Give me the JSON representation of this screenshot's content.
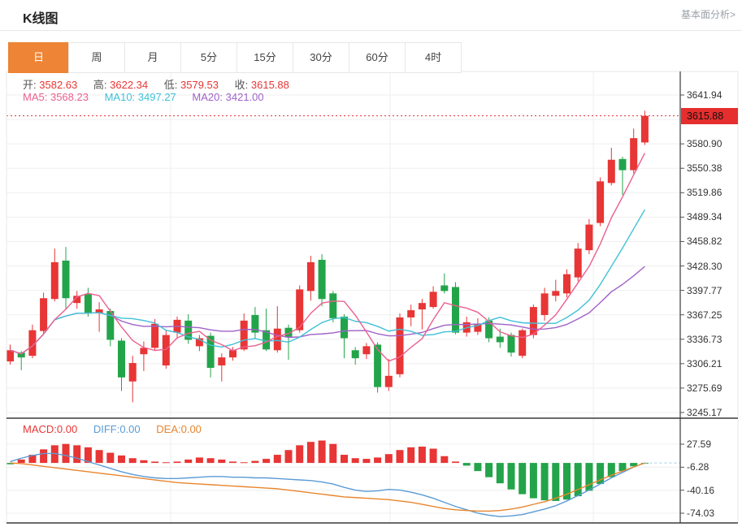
{
  "header": {
    "title": "K线图",
    "link": "基本面分析>"
  },
  "tabs": {
    "items": [
      "日",
      "周",
      "月",
      "5分",
      "15分",
      "30分",
      "60分",
      "4时"
    ],
    "active_index": 0
  },
  "legend": {
    "open_label": "开:",
    "open": "3582.63",
    "high_label": "高:",
    "high": "3622.34",
    "low_label": "低:",
    "low": "3579.53",
    "close_label": "收:",
    "close": "3615.88",
    "ma5_label": "MA5:",
    "ma5": "3568.23",
    "ma10_label": "MA10:",
    "ma10": "3497.27",
    "ma20_label": "MA20:",
    "ma20": "3421.00"
  },
  "macd_legend": {
    "macd_label": "MACD:",
    "macd": "0.00",
    "diff_label": "DIFF:",
    "diff": "0.00",
    "dea_label": "DEA:",
    "dea": "0.00"
  },
  "price_axis": {
    "ticks": [
      "3641.94",
      "3580.90",
      "3550.38",
      "3519.86",
      "3489.34",
      "3458.82",
      "3428.30",
      "3397.77",
      "3367.25",
      "3336.73",
      "3306.21",
      "3275.69",
      "3245.17"
    ],
    "current_tag": "3615.88"
  },
  "macd_axis": {
    "ticks": [
      "27.59",
      "-6.28",
      "-40.16",
      "-74.03"
    ]
  },
  "colors": {
    "up": "#e83535",
    "down": "#23a44a",
    "tag_bg": "#e62e2e",
    "ma5": "#ec5f8f",
    "ma10": "#3fc0d8",
    "ma20": "#a062c8",
    "diff": "#5b9bd5",
    "dea": "#e8852e",
    "grid": "#efefef",
    "frame_light": "#e7e7e7",
    "frame_dark": "#3a3a3a",
    "active_tab": "#ee8435",
    "dotted_line": "#e62e2e",
    "zero_dash": "#9ccbe8"
  },
  "chart_data": {
    "type": "candlestick+macd",
    "title": "K线图 日K",
    "price_axis_range": [
      3245.17,
      3641.94
    ],
    "price_gridline_step": 30.52,
    "current_price": 3615.88,
    "last_ohlc": {
      "open": 3582.63,
      "high": 3622.34,
      "low": 3579.53,
      "close": 3615.88
    },
    "ma_values": {
      "MA5": 3568.23,
      "MA10": 3497.27,
      "MA20": 3421.0
    },
    "ma_periods": [
      5,
      10,
      20
    ],
    "macd_axis_range": [
      -74.03,
      27.59
    ],
    "macd_values": {
      "MACD": 0.0,
      "DIFF": 0.0,
      "DEA": 0.0
    },
    "candles_ohlc": [
      [
        3309,
        3330,
        3305,
        3323
      ],
      [
        3320,
        3322,
        3298,
        3314
      ],
      [
        3316,
        3355,
        3313,
        3348
      ],
      [
        3347,
        3395,
        3344,
        3388
      ],
      [
        3387,
        3450,
        3384,
        3433
      ],
      [
        3435,
        3452,
        3374,
        3388
      ],
      [
        3382,
        3397,
        3375,
        3391
      ],
      [
        3393,
        3401,
        3365,
        3370
      ],
      [
        3369,
        3383,
        3346,
        3374
      ],
      [
        3372,
        3375,
        3328,
        3336
      ],
      [
        3335,
        3338,
        3272,
        3289
      ],
      [
        3284,
        3316,
        3258,
        3307
      ],
      [
        3318,
        3334,
        3297,
        3326
      ],
      [
        3326,
        3362,
        3322,
        3356
      ],
      [
        3304,
        3348,
        3300,
        3342
      ],
      [
        3345,
        3365,
        3339,
        3361
      ],
      [
        3360,
        3368,
        3331,
        3336
      ],
      [
        3328,
        3342,
        3322,
        3338
      ],
      [
        3341,
        3345,
        3289,
        3301
      ],
      [
        3304,
        3319,
        3284,
        3314
      ],
      [
        3314,
        3327,
        3310,
        3323
      ],
      [
        3324,
        3369,
        3322,
        3360
      ],
      [
        3367,
        3377,
        3338,
        3345
      ],
      [
        3348,
        3375,
        3322,
        3324
      ],
      [
        3323,
        3378,
        3320,
        3350
      ],
      [
        3351,
        3355,
        3311,
        3340
      ],
      [
        3348,
        3404,
        3345,
        3399
      ],
      [
        3397,
        3441,
        3385,
        3433
      ],
      [
        3436,
        3443,
        3378,
        3387
      ],
      [
        3394,
        3397,
        3358,
        3363
      ],
      [
        3365,
        3368,
        3313,
        3338
      ],
      [
        3323,
        3327,
        3305,
        3313
      ],
      [
        3318,
        3332,
        3312,
        3328
      ],
      [
        3330,
        3333,
        3270,
        3277
      ],
      [
        3277,
        3312,
        3272,
        3291
      ],
      [
        3293,
        3369,
        3289,
        3364
      ],
      [
        3364,
        3380,
        3353,
        3373
      ],
      [
        3374,
        3387,
        3349,
        3382
      ],
      [
        3377,
        3403,
        3375,
        3396
      ],
      [
        3404,
        3419,
        3394,
        3397
      ],
      [
        3402,
        3408,
        3343,
        3345
      ],
      [
        3345,
        3365,
        3340,
        3358
      ],
      [
        3346,
        3363,
        3342,
        3356
      ],
      [
        3360,
        3364,
        3333,
        3338
      ],
      [
        3340,
        3350,
        3326,
        3333
      ],
      [
        3342,
        3345,
        3315,
        3320
      ],
      [
        3316,
        3350,
        3313,
        3348
      ],
      [
        3342,
        3380,
        3338,
        3377
      ],
      [
        3367,
        3401,
        3360,
        3394
      ],
      [
        3391,
        3411,
        3384,
        3397
      ],
      [
        3394,
        3424,
        3389,
        3418
      ],
      [
        3414,
        3457,
        3409,
        3450
      ],
      [
        3448,
        3487,
        3443,
        3480
      ],
      [
        3482,
        3539,
        3478,
        3534
      ],
      [
        3532,
        3576,
        3529,
        3561
      ],
      [
        3562,
        3565,
        3517,
        3548
      ],
      [
        3548,
        3600,
        3544,
        3588
      ],
      [
        3582.63,
        3622.34,
        3579.53,
        3615.88
      ]
    ],
    "macd_histogram": [
      -2,
      5,
      12,
      20,
      26,
      28,
      26,
      23,
      19,
      15,
      11,
      7,
      4,
      2,
      1,
      2,
      5,
      8,
      7,
      5,
      2,
      1,
      3,
      6,
      12,
      19,
      26,
      31,
      33,
      28,
      12,
      7,
      6,
      8,
      13,
      19,
      23,
      24,
      21,
      10,
      2,
      -4,
      -12,
      -21,
      -30,
      -39,
      -46,
      -52,
      -55,
      -56,
      -54,
      -49,
      -41,
      -31,
      -21,
      -12,
      -5,
      -1
    ],
    "diff_line": [
      2,
      7,
      11,
      14,
      14,
      11,
      7,
      2,
      -3,
      -8,
      -13,
      -17,
      -20,
      -22,
      -23,
      -23,
      -22,
      -21,
      -20,
      -20,
      -21,
      -21,
      -22,
      -22,
      -23,
      -24,
      -25,
      -26,
      -28,
      -31,
      -36,
      -40,
      -42,
      -41,
      -39,
      -40,
      -43,
      -47,
      -52,
      -58,
      -64,
      -69,
      -74,
      -77,
      -79,
      -78,
      -76,
      -72,
      -68,
      -63,
      -56,
      -48,
      -40,
      -31,
      -22,
      -14,
      -6,
      0
    ],
    "dea_line": [
      0,
      -1,
      -3,
      -5,
      -7,
      -9,
      -11,
      -13,
      -15,
      -17,
      -19,
      -21,
      -23,
      -25,
      -27,
      -29,
      -30,
      -31,
      -32,
      -33,
      -34,
      -35,
      -36,
      -37,
      -38,
      -40,
      -42,
      -44,
      -46,
      -48,
      -50,
      -51,
      -52,
      -53,
      -54,
      -56,
      -58,
      -61,
      -64,
      -67,
      -69,
      -70,
      -71,
      -71,
      -70,
      -68,
      -65,
      -61,
      -57,
      -52,
      -46,
      -39,
      -32,
      -25,
      -18,
      -12,
      -6,
      0
    ]
  }
}
